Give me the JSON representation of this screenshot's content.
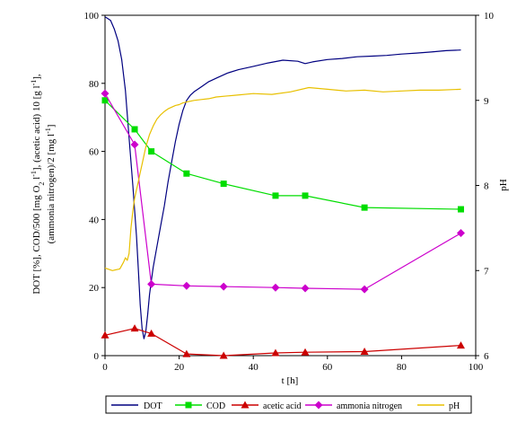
{
  "chart_data": {
    "type": "line",
    "xlabel": "t [h]",
    "ylabel_left": "DOT [%], COD/500 [mg O₂ l⁻¹], (acetic acid) 10 [g l⁻¹], (ammonia nitrogen)/2 [mg l⁻¹]",
    "ylabel_left_parts": {
      "line1": "DOT [%], COD/500 [mg O",
      "sub1": "2",
      "line1b": " l",
      "sup1": "-1",
      "line1c": "], (acetic acid) 10 [g l",
      "sup2": "-1",
      "line1d": "],",
      "line2": "(ammonia nitrogen)/2 [mg l",
      "sup3": "-1",
      "line2b": "]"
    },
    "ylabel_right": "pH",
    "xlim": [
      0,
      100
    ],
    "ylim_left": [
      0,
      100
    ],
    "ylim_right": [
      6,
      10
    ],
    "x_ticks": [
      "0",
      "20",
      "40",
      "60",
      "80",
      "100"
    ],
    "y_left_ticks": [
      "0",
      "20",
      "40",
      "60",
      "80",
      "100"
    ],
    "y_right_ticks": [
      "6",
      "7",
      "8",
      "9",
      "10"
    ],
    "legend_position": "bottom",
    "series": [
      {
        "name": "DOT",
        "axis": "left",
        "color": "#000080",
        "marker": "none",
        "x": [
          0,
          0.5,
          1.5,
          2.5,
          3.5,
          4.5,
          5.5,
          6.5,
          7.5,
          8.5,
          9.0,
          9.5,
          10.0,
          10.5,
          11.0,
          11.5,
          12.0,
          12.5,
          13.0,
          14.0,
          15.0,
          16.0,
          17.0,
          18.0,
          19.0,
          20.0,
          21.0,
          22.0,
          23.0,
          24.0,
          26.0,
          28.0,
          30.0,
          33.0,
          36.0,
          40.0,
          44.0,
          48.0,
          52.0,
          54.0,
          56.0,
          60.0,
          64.0,
          68.0,
          72.0,
          76.0,
          80.0,
          84.0,
          88.0,
          92.0,
          96.0
        ],
        "y": [
          99.5,
          99.2,
          98.5,
          96.0,
          92.5,
          87.0,
          78.0,
          64.0,
          50.0,
          35.0,
          25.0,
          15.0,
          8.0,
          5.0,
          7.0,
          12.0,
          18.0,
          22.0,
          26.0,
          32.0,
          38.0,
          44.0,
          51.0,
          57.0,
          63.0,
          68.0,
          72.0,
          75.0,
          76.5,
          77.5,
          79.0,
          80.5,
          81.5,
          83.0,
          84.0,
          85.0,
          86.0,
          86.8,
          86.5,
          85.8,
          86.3,
          87.0,
          87.3,
          87.8,
          88.0,
          88.2,
          88.6,
          88.9,
          89.2,
          89.6,
          89.8
        ]
      },
      {
        "name": "COD",
        "axis": "left",
        "color": "#00dd00",
        "marker": "square",
        "x": [
          0,
          8,
          12.5,
          22,
          32,
          46,
          54,
          70,
          96
        ],
        "y": [
          75,
          66.5,
          60,
          53.5,
          50.5,
          47,
          47,
          43.5,
          43
        ]
      },
      {
        "name": "acetic acid",
        "axis": "left",
        "color": "#cc0000",
        "marker": "triangle",
        "x": [
          0,
          8,
          12.5,
          22,
          32,
          46,
          54,
          70,
          96
        ],
        "y": [
          6,
          8,
          6.5,
          0.5,
          0,
          0.8,
          1,
          1.2,
          3
        ]
      },
      {
        "name": "ammonia nitrogen",
        "axis": "left",
        "color": "#cc00cc",
        "marker": "diamond",
        "x": [
          0,
          8,
          12.5,
          22,
          32,
          46,
          54,
          70,
          96
        ],
        "y": [
          77,
          62,
          21,
          20.5,
          20.3,
          20,
          19.8,
          19.5,
          36
        ]
      },
      {
        "name": "pH",
        "axis": "right",
        "color": "#e8c000",
        "marker": "none",
        "x": [
          0,
          2,
          4,
          5,
          5.5,
          6,
          6.5,
          7,
          7.5,
          8,
          8.5,
          9,
          9.5,
          10,
          11,
          12,
          13,
          14,
          15,
          16,
          17,
          18,
          19,
          20,
          21,
          22,
          24,
          26,
          28,
          30,
          35,
          40,
          45,
          50,
          55,
          60,
          65,
          70,
          75,
          80,
          85,
          90,
          96
        ],
        "y": [
          7.03,
          7.0,
          7.02,
          7.1,
          7.15,
          7.12,
          7.2,
          7.5,
          7.7,
          7.85,
          7.95,
          8.05,
          8.15,
          8.25,
          8.45,
          8.6,
          8.7,
          8.78,
          8.83,
          8.87,
          8.9,
          8.92,
          8.94,
          8.95,
          8.97,
          8.98,
          9.0,
          9.01,
          9.02,
          9.04,
          9.06,
          9.08,
          9.07,
          9.1,
          9.15,
          9.13,
          9.11,
          9.12,
          9.1,
          9.11,
          9.12,
          9.12,
          9.13
        ]
      }
    ]
  }
}
